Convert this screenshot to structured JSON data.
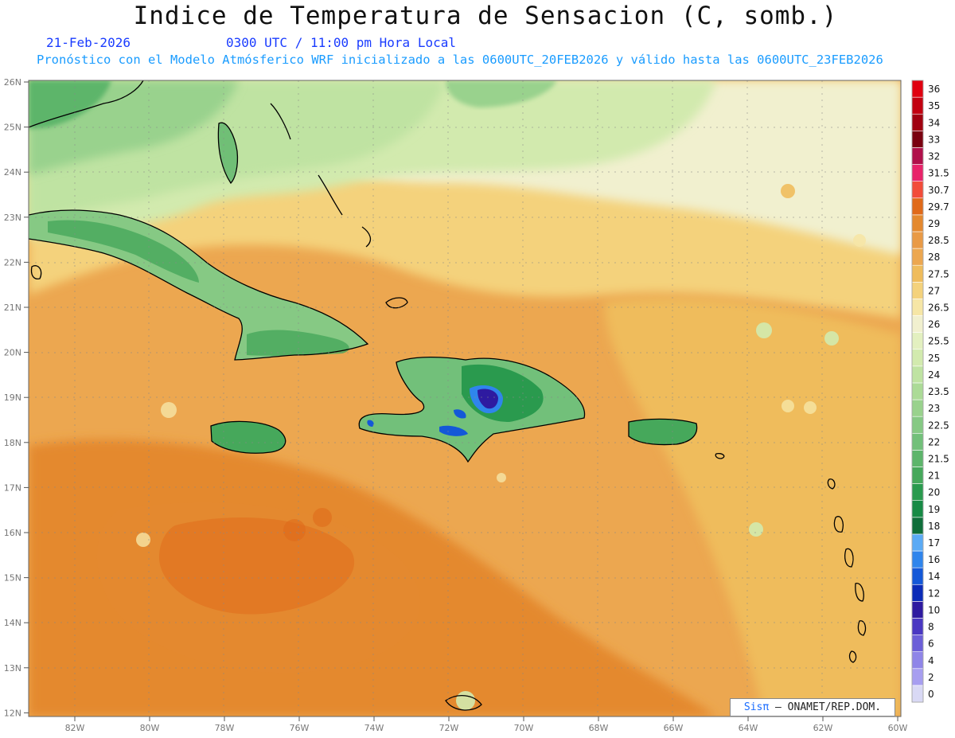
{
  "title": "Indice de Temperatura de Sensacion (C, somb.)",
  "date_label": "21-Feb-2026",
  "time_label": "0300 UTC / 11:00 pm Hora Local",
  "model_info": "Pronóstico con el Modelo Atmósferico WRF inicializado a las 0600UTC_20FEB2026 y válido hasta las  0600UTC_23FEB2026",
  "credit": {
    "brand": "Sisπ",
    "text": "– ONAMET/REP.DOM."
  },
  "lat_labels": [
    "26N",
    "25N",
    "24N",
    "23N",
    "22N",
    "21N",
    "20N",
    "19N",
    "18N",
    "17N",
    "16N",
    "15N",
    "14N",
    "13N",
    "12N"
  ],
  "lon_labels": [
    "82W",
    "80W",
    "78W",
    "76W",
    "74W",
    "72W",
    "70W",
    "68W",
    "66W",
    "64W",
    "62W",
    "60W"
  ],
  "legend": [
    {
      "label": "0",
      "color": "#d9d9f5"
    },
    {
      "label": "2",
      "color": "#a79ef0"
    },
    {
      "label": "4",
      "color": "#8f85e8"
    },
    {
      "label": "6",
      "color": "#6c5fd8"
    },
    {
      "label": "8",
      "color": "#4a38c2"
    },
    {
      "label": "10",
      "color": "#2e1aa0"
    },
    {
      "label": "12",
      "color": "#0b2bb8"
    },
    {
      "label": "14",
      "color": "#1458d8"
    },
    {
      "label": "16",
      "color": "#2f85ec"
    },
    {
      "label": "17",
      "color": "#5aaaf5"
    },
    {
      "label": "18",
      "color": "#0f6e3a"
    },
    {
      "label": "19",
      "color": "#178a45"
    },
    {
      "label": "20",
      "color": "#2a9a4e"
    },
    {
      "label": "21",
      "color": "#46a85b"
    },
    {
      "label": "21.5",
      "color": "#5db56b"
    },
    {
      "label": "22",
      "color": "#72c07a"
    },
    {
      "label": "22.5",
      "color": "#86c984"
    },
    {
      "label": "23",
      "color": "#99d28d"
    },
    {
      "label": "23.5",
      "color": "#acdb97"
    },
    {
      "label": "24",
      "color": "#bfe3a2"
    },
    {
      "label": "25",
      "color": "#d2eaae"
    },
    {
      "label": "25.5",
      "color": "#e3f0c0"
    },
    {
      "label": "26",
      "color": "#f1f0cf"
    },
    {
      "label": "26.5",
      "color": "#f6e6a6"
    },
    {
      "label": "27",
      "color": "#f4d27c"
    },
    {
      "label": "27.5",
      "color": "#efbc5c"
    },
    {
      "label": "28",
      "color": "#eca750"
    },
    {
      "label": "28.5",
      "color": "#e99a46"
    },
    {
      "label": "29",
      "color": "#e4892f"
    },
    {
      "label": "29.7",
      "color": "#e06a1a"
    },
    {
      "label": "30.7",
      "color": "#f24c3a"
    },
    {
      "label": "31.5",
      "color": "#e8236a"
    },
    {
      "label": "32",
      "color": "#b0104a"
    },
    {
      "label": "33",
      "color": "#7a0010"
    },
    {
      "label": "34",
      "color": "#a00010"
    },
    {
      "label": "35",
      "color": "#c20010"
    },
    {
      "label": "36",
      "color": "#e00010"
    }
  ]
}
